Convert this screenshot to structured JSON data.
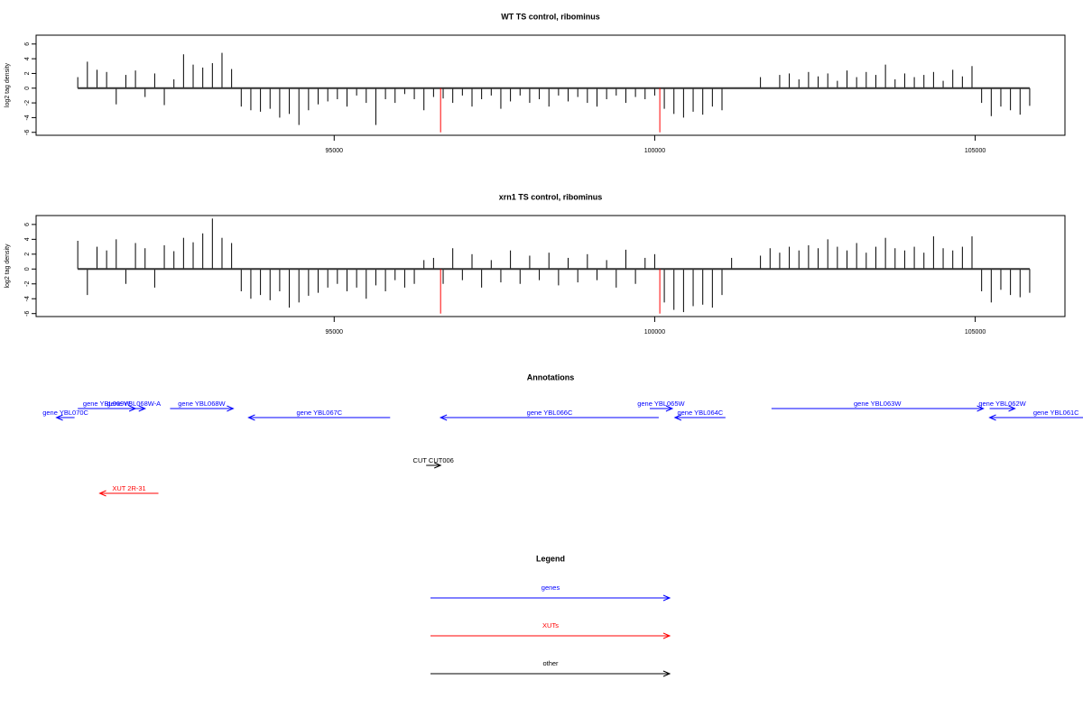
{
  "chart_data": [
    {
      "type": "bar",
      "title": "WT TS control, ribominus",
      "ylabel": "log2 tag density",
      "xlim": [
        90350,
        106400
      ],
      "ylim": [
        -6.4,
        7.2
      ],
      "xticks": [
        95000,
        100000,
        105000
      ],
      "yticks": [
        -6,
        -4,
        -2,
        0,
        2,
        4,
        6
      ],
      "color": "#000000",
      "x": [
        91000,
        91150,
        91300,
        91450,
        91600,
        91750,
        91900,
        92050,
        92200,
        92350,
        92500,
        92650,
        92800,
        92950,
        93100,
        93250,
        93400,
        93550,
        93700,
        93850,
        94000,
        94150,
        94300,
        94450,
        94600,
        94750,
        94900,
        95050,
        95200,
        95350,
        95500,
        95650,
        95800,
        95950,
        96100,
        96250,
        96400,
        96550,
        96700,
        96850,
        97000,
        97150,
        97300,
        97450,
        97600,
        97750,
        97900,
        98050,
        98200,
        98350,
        98500,
        98650,
        98800,
        98950,
        99100,
        99250,
        99400,
        99550,
        99700,
        99850,
        100000,
        100150,
        100300,
        100450,
        100600,
        100750,
        100900,
        101050,
        101200,
        101350,
        101500,
        101650,
        101800,
        101950,
        102100,
        102250,
        102400,
        102550,
        102700,
        102850,
        103000,
        103150,
        103300,
        103450,
        103600,
        103750,
        103900,
        104050,
        104200,
        104350,
        104500,
        104650,
        104800,
        104950,
        105100,
        105250,
        105400,
        105550,
        105700,
        105850
      ],
      "values": [
        1.5,
        3.6,
        2.5,
        2.2,
        -2.2,
        1.8,
        2.4,
        -1.2,
        2,
        -2.3,
        1.2,
        4.6,
        3.2,
        2.8,
        3.4,
        4.8,
        2.6,
        -2.5,
        -3,
        -3.2,
        -2.8,
        -4,
        -3.5,
        -5,
        -3,
        -2.2,
        -1.8,
        -1.5,
        -2.5,
        -1,
        -2,
        -5,
        -1.5,
        -2,
        -0.8,
        -1.5,
        -3,
        -1.2,
        -1.4,
        -2,
        -1,
        -2.5,
        -1.5,
        -1,
        -2.8,
        -1.8,
        -1,
        -2,
        -1.5,
        -2.5,
        -1,
        -1.8,
        -1.2,
        -2,
        -2.5,
        -1.5,
        -1,
        -2,
        -1.2,
        -1.5,
        -1,
        -2.8,
        -3.5,
        -4,
        -3.2,
        -3.6,
        -2.5,
        -3,
        0,
        0,
        0,
        1.5,
        0,
        1.8,
        2,
        1.2,
        2.2,
        1.6,
        2,
        1,
        2.4,
        1.5,
        2.2,
        1.8,
        3.2,
        1.2,
        2,
        1.5,
        1.8,
        2.2,
        1,
        2.5,
        1.6,
        3,
        -2,
        -3.8,
        -2.5,
        -3,
        -3.6,
        -2.4
      ],
      "highlights": {
        "color": "#ff0000",
        "x": [
          96660,
          100080
        ],
        "values": [
          -6,
          -6
        ]
      }
    },
    {
      "type": "bar",
      "title": "xrn1 TS control, ribominus",
      "ylabel": "log2 tag density",
      "xlim": [
        90350,
        106400
      ],
      "ylim": [
        -6.4,
        7.2
      ],
      "xticks": [
        95000,
        100000,
        105000
      ],
      "yticks": [
        -6,
        -4,
        -2,
        0,
        2,
        4,
        6
      ],
      "color": "#000000",
      "x": [
        91000,
        91150,
        91300,
        91450,
        91600,
        91750,
        91900,
        92050,
        92200,
        92350,
        92500,
        92650,
        92800,
        92950,
        93100,
        93250,
        93400,
        93550,
        93700,
        93850,
        94000,
        94150,
        94300,
        94450,
        94600,
        94750,
        94900,
        95050,
        95200,
        95350,
        95500,
        95650,
        95800,
        95950,
        96100,
        96250,
        96400,
        96550,
        96700,
        96850,
        97000,
        97150,
        97300,
        97450,
        97600,
        97750,
        97900,
        98050,
        98200,
        98350,
        98500,
        98650,
        98800,
        98950,
        99100,
        99250,
        99400,
        99550,
        99700,
        99850,
        100000,
        100150,
        100300,
        100450,
        100600,
        100750,
        100900,
        101050,
        101200,
        101350,
        101500,
        101650,
        101800,
        101950,
        102100,
        102250,
        102400,
        102550,
        102700,
        102850,
        103000,
        103150,
        103300,
        103450,
        103600,
        103750,
        103900,
        104050,
        104200,
        104350,
        104500,
        104650,
        104800,
        104950,
        105100,
        105250,
        105400,
        105550,
        105700,
        105850
      ],
      "values": [
        3.8,
        -3.5,
        3,
        2.5,
        4,
        -2,
        3.5,
        2.8,
        -2.5,
        3.2,
        2.4,
        4.2,
        3.6,
        4.8,
        6.8,
        4.2,
        3.5,
        -3,
        -4,
        -3.5,
        -4.2,
        -3,
        -5.2,
        -4.5,
        -3.6,
        -3.2,
        -2.5,
        -2,
        -3,
        -2.5,
        -4,
        -2.2,
        -3,
        -1.5,
        -2.5,
        -2,
        1.2,
        1.5,
        -2,
        2.8,
        -1.5,
        2,
        -2.5,
        1.2,
        -1.8,
        2.5,
        -2,
        1.8,
        -1.5,
        2.2,
        -2.2,
        1.5,
        -1.8,
        2,
        -1.5,
        1.2,
        -2.5,
        2.6,
        -2,
        1.5,
        2,
        -4.5,
        -5.5,
        -5.8,
        -5,
        -4.8,
        -5.2,
        -3.5,
        1.5,
        0,
        0,
        1.8,
        2.8,
        2.2,
        3,
        2.5,
        3.2,
        2.8,
        4,
        3,
        2.5,
        3.5,
        2.2,
        3,
        4.2,
        2.8,
        2.5,
        3,
        2.2,
        4.4,
        2.8,
        2.5,
        3,
        4.4,
        -3,
        -4.5,
        -2.8,
        -3.5,
        -3.8,
        -3.2
      ],
      "highlights": {
        "color": "#ff0000",
        "x": [
          96660,
          100080
        ],
        "values": [
          -6,
          -6
        ]
      }
    },
    {
      "type": "annotation",
      "title": "Annotations",
      "legend_title": "Legend",
      "xlim": [
        90350,
        106400
      ],
      "series": [
        {
          "name": "genes",
          "color": "#0000ff",
          "features": [
            {
              "label": "gene YBL070C",
              "start": 90950,
              "end": 90668
            },
            {
              "label": "gene YBL069W",
              "start": 91000,
              "end": 91900
            },
            {
              "label": "gene YBL068W-A",
              "start": 91700,
              "end": 92050
            },
            {
              "label": "gene YBL068W",
              "start": 92440,
              "end": 93425
            },
            {
              "label": "gene YBL067C",
              "start": 95873,
              "end": 93665
            },
            {
              "label": "gene YBL066C",
              "start": 100063,
              "end": 96660
            },
            {
              "label": "gene YBL065W",
              "start": 99923,
              "end": 100274
            },
            {
              "label": "gene YBL064C",
              "start": 101104,
              "end": 100316
            },
            {
              "label": "gene YBL063W",
              "start": 101822,
              "end": 105127
            },
            {
              "label": "gene YBL062W",
              "start": 105225,
              "end": 105619
            },
            {
              "label": "gene YBL061C",
              "start": 107300,
              "end": 105225
            }
          ]
        },
        {
          "name": "XUTs",
          "color": "#ff0000",
          "features": [
            {
              "label": "XUT 2R-31",
              "start": 92258,
              "end": 91343
            }
          ]
        },
        {
          "name": "other",
          "color": "#000000",
          "features": [
            {
              "label": "CUT CUT006",
              "start": 96435,
              "end": 96660
            }
          ]
        }
      ]
    }
  ]
}
